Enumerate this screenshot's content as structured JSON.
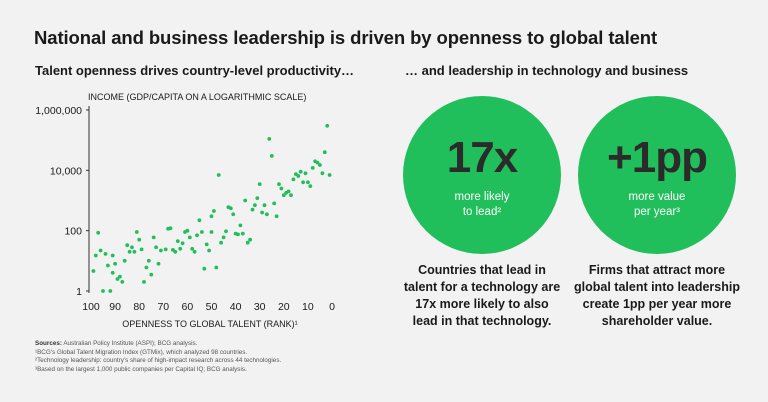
{
  "title": "National and business leadership is driven by openness to global talent",
  "left_heading": "Talent openness drives country-level productivity…",
  "right_heading": "… and leadership in technology and business",
  "stats": [
    {
      "value": "17x",
      "label_line1": "more likely",
      "label_line2": "to lead²",
      "caption_lines": [
        "Countries that lead in",
        "talent for a technology are",
        "17x more likely to also",
        "lead in that technology."
      ]
    },
    {
      "value": "+1pp",
      "label_line1": "more value",
      "label_line2": "per year³",
      "caption_lines": [
        "Firms that attract more",
        "global talent into leadership",
        "create 1pp per year more",
        "shareholder value."
      ]
    }
  ],
  "sources": {
    "label": "Sources:",
    "text": "Australian Policy Institute (ASPI); BCG analysis.",
    "notes": [
      "¹BCG's Global Talent Migration Index (GTMix), which analyzed 98 countries.",
      "²Technology leadership: country's share of high-impact research across 44 technologies.",
      "³Based on the largest 1,000 public companies per Capital IQ; BCG analysis."
    ]
  },
  "colors": {
    "accent": "#21bf5b",
    "background": "#f2f2f2",
    "stat_value": "#2b2b2b"
  },
  "chart_data": {
    "type": "scatter",
    "title": "",
    "ylabel": "INCOME (GDP/CAPITA ON A LOGARITHMIC SCALE)",
    "xlabel": "OPENNESS TO GLOBAL TALENT (RANK)¹",
    "x_reversed": true,
    "y_scale": "log",
    "xlim": [
      100,
      0
    ],
    "ylim": [
      1,
      1000000
    ],
    "x_ticks": [
      100,
      90,
      80,
      70,
      60,
      50,
      40,
      30,
      20,
      10,
      0
    ],
    "y_ticks": [
      1,
      100,
      10000,
      1000000
    ],
    "y_tick_labels": [
      "1",
      "100",
      "10,000",
      "1,000,000"
    ],
    "series": [
      {
        "name": "Countries",
        "points": [
          [
            99,
            4.6
          ],
          [
            98,
            15
          ],
          [
            97,
            85
          ],
          [
            96,
            22
          ],
          [
            95,
            1
          ],
          [
            94,
            17
          ],
          [
            93,
            7
          ],
          [
            92,
            1
          ],
          [
            91,
            4
          ],
          [
            91,
            15
          ],
          [
            90,
            8
          ],
          [
            89,
            2.5
          ],
          [
            88,
            3
          ],
          [
            87,
            2
          ],
          [
            86,
            10
          ],
          [
            85,
            33
          ],
          [
            84,
            20
          ],
          [
            83,
            28
          ],
          [
            82,
            20
          ],
          [
            81,
            90
          ],
          [
            80,
            50
          ],
          [
            79,
            24
          ],
          [
            78,
            2
          ],
          [
            77,
            6
          ],
          [
            76,
            10
          ],
          [
            75,
            3.5
          ],
          [
            74,
            60
          ],
          [
            73,
            28
          ],
          [
            72,
            8
          ],
          [
            71,
            22
          ],
          [
            69,
            24
          ],
          [
            68,
            115
          ],
          [
            67,
            120
          ],
          [
            66,
            23
          ],
          [
            65,
            20
          ],
          [
            64,
            45
          ],
          [
            63,
            25
          ],
          [
            62,
            38
          ],
          [
            61,
            90
          ],
          [
            60,
            100
          ],
          [
            59,
            60
          ],
          [
            58,
            25
          ],
          [
            57,
            20
          ],
          [
            56,
            70
          ],
          [
            55,
            220
          ],
          [
            54,
            90
          ],
          [
            53,
            5.5
          ],
          [
            52,
            35
          ],
          [
            51,
            22
          ],
          [
            50,
            90
          ],
          [
            50,
            300
          ],
          [
            49,
            450
          ],
          [
            48,
            6
          ],
          [
            47,
            7000
          ],
          [
            46,
            40
          ],
          [
            45,
            60
          ],
          [
            44,
            95
          ],
          [
            43,
            600
          ],
          [
            42,
            550
          ],
          [
            41,
            350
          ],
          [
            40,
            80
          ],
          [
            39,
            75
          ],
          [
            38,
            150
          ],
          [
            37,
            80
          ],
          [
            36,
            1000
          ],
          [
            35,
            40
          ],
          [
            34,
            50
          ],
          [
            33,
            500
          ],
          [
            32,
            700
          ],
          [
            31,
            1200
          ],
          [
            30,
            3500
          ],
          [
            29,
            400
          ],
          [
            28,
            700
          ],
          [
            27,
            350
          ],
          [
            26,
            110000
          ],
          [
            25,
            30000
          ],
          [
            24,
            800
          ],
          [
            23,
            300
          ],
          [
            22,
            3500
          ],
          [
            21,
            2500
          ],
          [
            20,
            1500
          ],
          [
            19,
            1800
          ],
          [
            18,
            2000
          ],
          [
            17,
            1500
          ],
          [
            16,
            5000
          ],
          [
            15,
            7500
          ],
          [
            14,
            6500
          ],
          [
            13,
            9000
          ],
          [
            12,
            4000
          ],
          [
            11,
            8000
          ],
          [
            10,
            4000
          ],
          [
            9,
            3000
          ],
          [
            8,
            12000
          ],
          [
            7,
            20000
          ],
          [
            6,
            18000
          ],
          [
            5,
            15000
          ],
          [
            4,
            8000
          ],
          [
            3,
            40000
          ],
          [
            2,
            300000
          ],
          [
            1,
            7000
          ]
        ]
      }
    ]
  }
}
